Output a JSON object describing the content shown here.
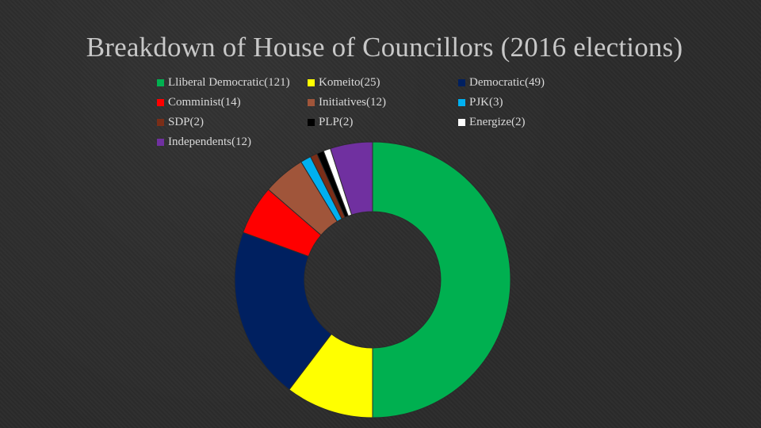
{
  "title": "Breakdown of House of Councillors (2016 elections)",
  "chart_data": {
    "type": "pie",
    "style": "donut",
    "title": "Breakdown of House of Councillors (2016 elections)",
    "legend_placement": "top",
    "series": [
      {
        "label": "Lliberal Democratic(121)",
        "value": 121,
        "color": "#00b050"
      },
      {
        "label": "Komeito(25)",
        "value": 25,
        "color": "#ffff00"
      },
      {
        "label": "Democratic(49)",
        "value": 49,
        "color": "#002060"
      },
      {
        "label": "Comminist(14)",
        "value": 14,
        "color": "#ff0000"
      },
      {
        "label": "Initiatives(12)",
        "value": 12,
        "color": "#a0553a"
      },
      {
        "label": "PJK(3)",
        "value": 3,
        "color": "#00b0f0"
      },
      {
        "label": "SDP(2)",
        "value": 2,
        "color": "#7a2e18"
      },
      {
        "label": "PLP(2)",
        "value": 2,
        "color": "#000000"
      },
      {
        "label": "Energize(2)",
        "value": 2,
        "color": "#ffffff"
      },
      {
        "label": "Independents(12)",
        "value": 12,
        "color": "#7030a0"
      }
    ]
  }
}
